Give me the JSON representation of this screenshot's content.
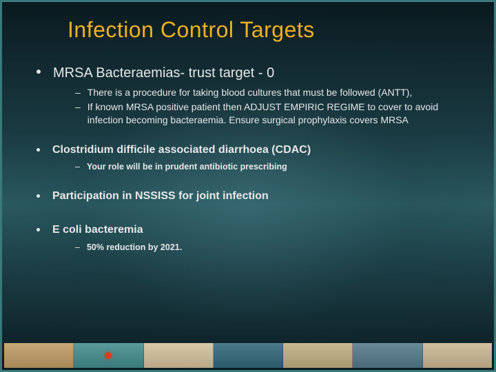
{
  "title": "Infection Control Targets",
  "items": [
    {
      "level": 1,
      "size": "large",
      "text": "MRSA Bacteraemias- trust target - 0",
      "children": [
        {
          "text": "There is a procedure for taking blood cultures that must be followed (ANTT),"
        },
        {
          "text": "If known MRSA positive patient then ADJUST EMPIRIC REGIME to cover to avoid infection becoming bacteraemia. Ensure surgical prophylaxis covers MRSA"
        }
      ]
    },
    {
      "level": 1,
      "size": "small",
      "text": "Clostridium difficile associated diarrhoea (CDAC)",
      "children": [
        {
          "text": "Your role will be in prudent antibiotic prescribing"
        }
      ]
    },
    {
      "level": 1,
      "size": "small",
      "text": "Participation in NSSISS for joint infection",
      "children": []
    },
    {
      "level": 1,
      "size": "small",
      "text": "E coli bacteremia",
      "children": [
        {
          "text": "50% reduction by 2021."
        }
      ]
    }
  ],
  "colors": {
    "title": "#f0b020",
    "text": "#e8e8e8",
    "border": "#3a7a7a"
  }
}
